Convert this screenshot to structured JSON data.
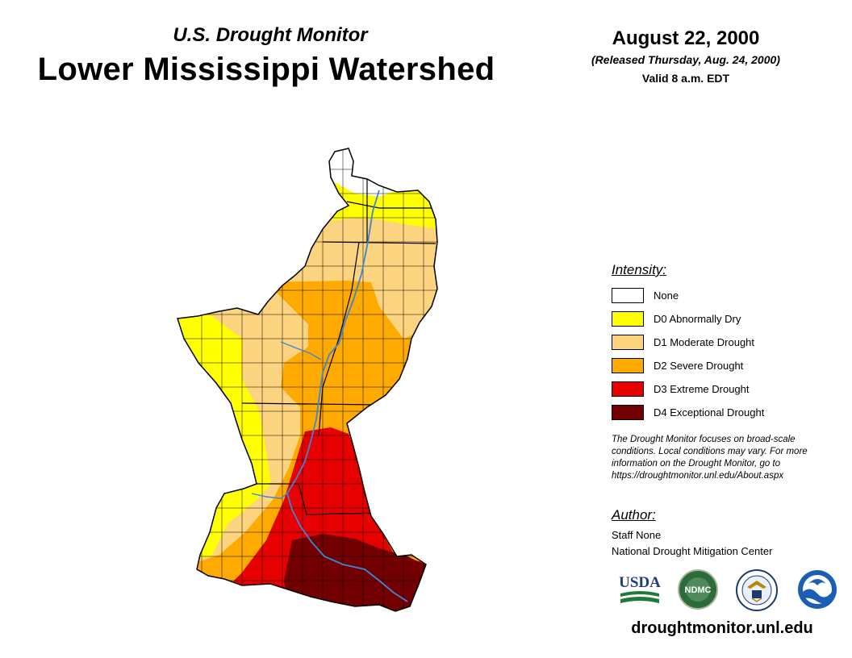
{
  "header": {
    "subtitle": "U.S. Drought Monitor",
    "title": "Lower Mississippi Watershed",
    "date": "August 22, 2000",
    "released": "(Released Thursday, Aug. 24, 2000)",
    "valid": "Valid 8 a.m. EDT"
  },
  "legend": {
    "heading": "Intensity:",
    "items": [
      {
        "label": "None",
        "color": "#ffffff"
      },
      {
        "label": "D0 Abnormally Dry",
        "color": "#ffff00"
      },
      {
        "label": "D1 Moderate Drought",
        "color": "#fcd37f"
      },
      {
        "label": "D2 Severe Drought",
        "color": "#ffaa00"
      },
      {
        "label": "D3 Extreme Drought",
        "color": "#e60000"
      },
      {
        "label": "D4 Exceptional Drought",
        "color": "#730000"
      }
    ]
  },
  "note": {
    "line1": "The Drought Monitor focuses on broad-scale",
    "line2": "conditions. Local conditions may vary. For more",
    "line3": "information on the Drought Monitor, go to",
    "line4": "https://droughtmonitor.unl.edu/About.aspx"
  },
  "author": {
    "heading": "Author:",
    "name": "Staff None",
    "org": "National Drought Mitigation Center"
  },
  "logos": {
    "usda": "USDA",
    "ndmc": "NDMC",
    "noaa": "NOAA"
  },
  "footer": {
    "url": "droughtmonitor.unl.edu"
  },
  "colors": {
    "river": "#3a86d8",
    "border": "#000000"
  }
}
